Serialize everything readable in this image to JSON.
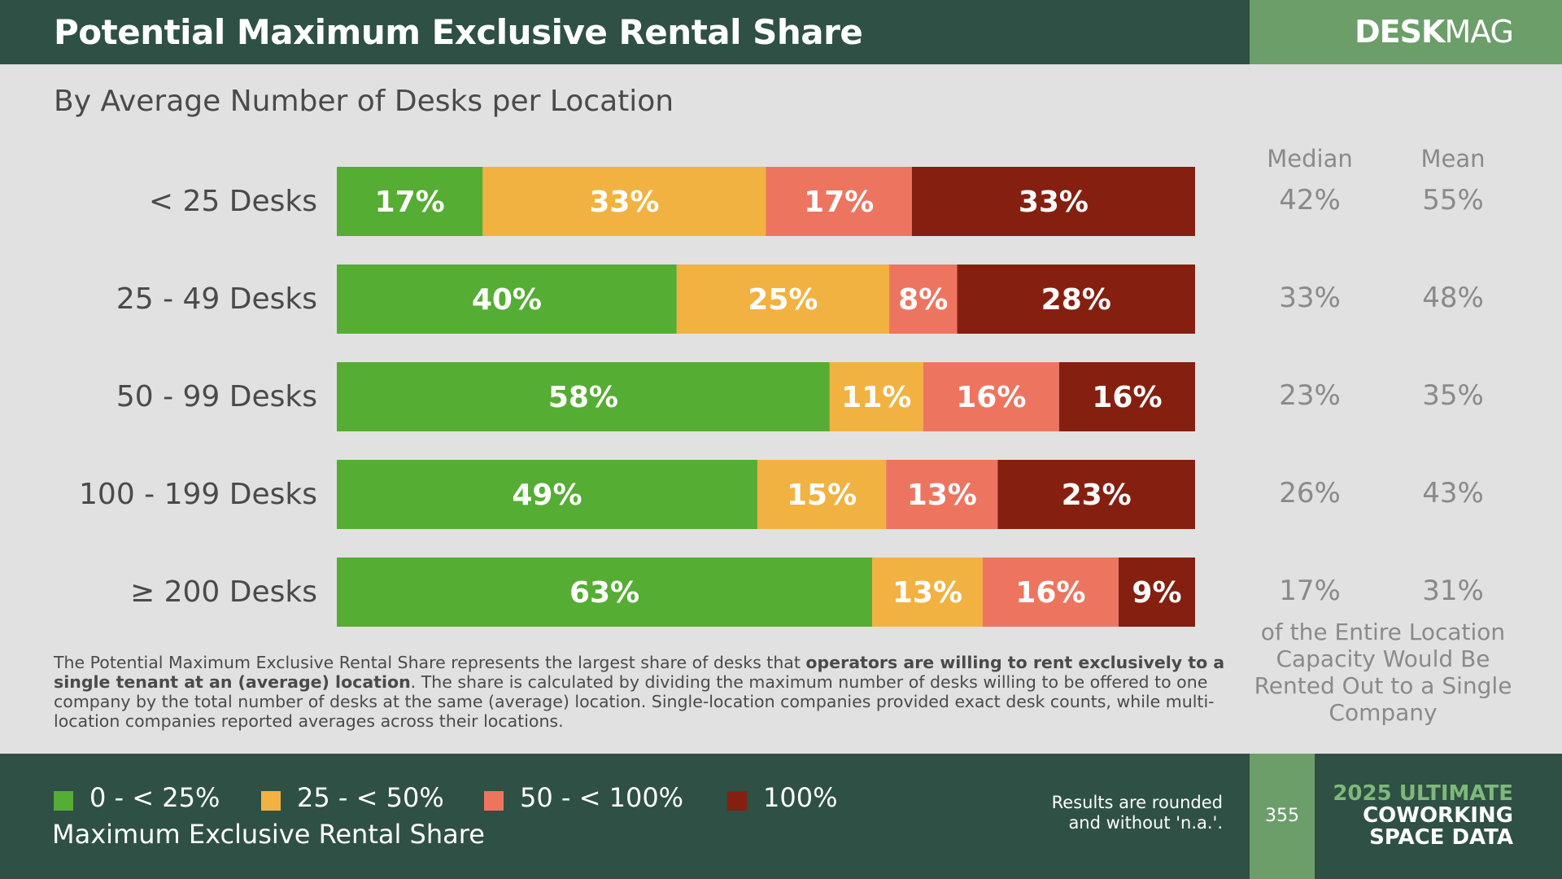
{
  "header": {
    "title": "Potential Maximum Exclusive Rental Share",
    "brand_bold": "DESK",
    "brand_light": "MAG"
  },
  "subtitle": "By Average Number of Desks per Location",
  "colors": {
    "header_bg": "#2f5044",
    "brand_bg": "#6c9e6a",
    "series": [
      "#55ad33",
      "#f2b241",
      "#ed7560",
      "#852011"
    ]
  },
  "chart_data": {
    "type": "bar",
    "orientation": "horizontal",
    "stacked": true,
    "title": "Potential Maximum Exclusive Rental Share",
    "subtitle": "By Average Number of Desks per Location",
    "categories": [
      "< 25 Desks",
      "25 - 49 Desks",
      "50 - 99 Desks",
      "100 - 199 Desks",
      "≥ 200 Desks"
    ],
    "series": [
      {
        "name": "0 - < 25%",
        "values": [
          17,
          40,
          58,
          49,
          63
        ]
      },
      {
        "name": "25 - < 50%",
        "values": [
          33,
          25,
          11,
          15,
          13
        ]
      },
      {
        "name": "50 - < 100%",
        "values": [
          17,
          8,
          16,
          13,
          16
        ]
      },
      {
        "name": "100%",
        "values": [
          33,
          28,
          16,
          23,
          9
        ]
      }
    ],
    "value_suffix": "%",
    "legend_title": "Maximum Exclusive Rental Share",
    "legend_position": "bottom-left"
  },
  "stats": {
    "median_label": "Median",
    "mean_label": "Mean",
    "median": [
      "42%",
      "33%",
      "23%",
      "26%",
      "17%"
    ],
    "mean": [
      "55%",
      "48%",
      "35%",
      "43%",
      "31%"
    ],
    "note": "of the Entire Location Capacity Would Be Rented Out to a Single Company"
  },
  "description": {
    "part1": "The Potential Maximum Exclusive Rental Share represents the largest share of desks that ",
    "bold": "operators are willing to rent exclusively to a single tenant at an (average) location",
    "part2": ". The share is calculated by dividing the maximum number of desks willing to be offered to one company by the total number of desks at the same (average) location. Single-location companies provided exact desk counts, while multi-location companies reported averages across their locations."
  },
  "footer": {
    "legend_title": "Maximum Exclusive Rental Share",
    "legend": [
      "0 - < 25%",
      "25 - < 50%",
      "50 - < 100%",
      "100%"
    ],
    "rounded_note_line1": "Results are rounded",
    "rounded_note_line2": "and without 'n.a.'.",
    "page_number": "355",
    "report_line1": "2025 ULTIMATE",
    "report_line2": "COWORKING",
    "report_line3": "SPACE DATA"
  }
}
